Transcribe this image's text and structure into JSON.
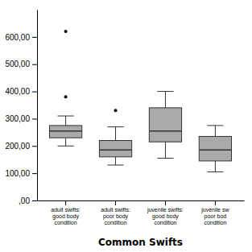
{
  "chart_data": {
    "type": "box",
    "xlabel": "Common Swifts",
    "categories": [
      "adult swifts:\ngood body\ncondition",
      "adult swifts:\npoor body\ncondition",
      "juvenile swifts:\ngood body\ncondition",
      "juvenile sw\npoor bod\ncondition"
    ],
    "boxes": [
      {
        "low": 200,
        "q1": 230,
        "median": 255,
        "q3": 275,
        "high": 310,
        "fliers": [
          380,
          620
        ]
      },
      {
        "low": 130,
        "q1": 160,
        "median": 185,
        "q3": 220,
        "high": 270,
        "fliers": [
          330
        ]
      },
      {
        "low": 155,
        "q1": 215,
        "median": 255,
        "q3": 340,
        "high": 400,
        "fliers": []
      },
      {
        "low": 105,
        "q1": 145,
        "median": 185,
        "q3": 235,
        "high": 275,
        "fliers": []
      }
    ],
    "color": "#aaaaaa",
    "ylim": [
      0,
      700
    ],
    "yticks": [
      {
        "value": 600,
        "label": "600,00"
      },
      {
        "value": 500,
        "label": "500,00"
      },
      {
        "value": 400,
        "label": "400,00"
      },
      {
        "value": 300,
        "label": "300,00"
      },
      {
        "value": 200,
        "label": "200,00"
      },
      {
        "value": 100,
        "label": "100,00"
      },
      {
        "value": 0,
        "label": ",00"
      }
    ],
    "grid": false
  }
}
